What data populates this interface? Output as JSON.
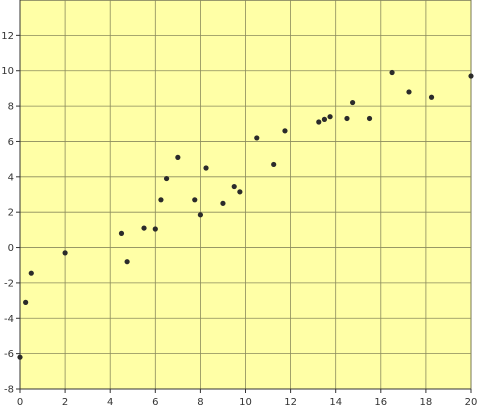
{
  "chart_data": {
    "type": "scatter",
    "title": "",
    "xlabel": "",
    "ylabel": "",
    "xlim": [
      0,
      20
    ],
    "ylim": [
      -8,
      14
    ],
    "xticks": [
      0,
      2,
      4,
      6,
      8,
      10,
      12,
      14,
      16,
      18,
      20
    ],
    "yticks": [
      -8,
      -6,
      -4,
      -2,
      0,
      2,
      4,
      6,
      8,
      10,
      12
    ],
    "grid": true,
    "legend": "none",
    "colors": {
      "plot_background": "#ffffa6",
      "grid": "#8a8a5c",
      "marker": "#2b2b2b",
      "axis": "#333333"
    },
    "series": [
      {
        "points": [
          [
            0.0,
            -6.2
          ],
          [
            0.25,
            -3.1
          ],
          [
            0.5,
            -1.45
          ],
          [
            2.0,
            -0.3
          ],
          [
            4.5,
            0.8
          ],
          [
            4.75,
            -0.8
          ],
          [
            5.5,
            1.1
          ],
          [
            6.0,
            1.05
          ],
          [
            6.25,
            2.7
          ],
          [
            6.5,
            3.9
          ],
          [
            7.0,
            5.1
          ],
          [
            7.75,
            2.7
          ],
          [
            8.0,
            1.85
          ],
          [
            8.25,
            4.5
          ],
          [
            9.0,
            2.5
          ],
          [
            9.5,
            3.45
          ],
          [
            9.75,
            3.15
          ],
          [
            10.5,
            6.2
          ],
          [
            11.25,
            4.7
          ],
          [
            11.75,
            6.6
          ],
          [
            13.25,
            7.1
          ],
          [
            13.5,
            7.25
          ],
          [
            13.75,
            7.4
          ],
          [
            14.5,
            7.3
          ],
          [
            14.75,
            8.2
          ],
          [
            15.5,
            7.3
          ],
          [
            16.5,
            9.9
          ],
          [
            17.25,
            8.8
          ],
          [
            18.25,
            8.5
          ],
          [
            20.0,
            9.7
          ]
        ]
      }
    ]
  }
}
